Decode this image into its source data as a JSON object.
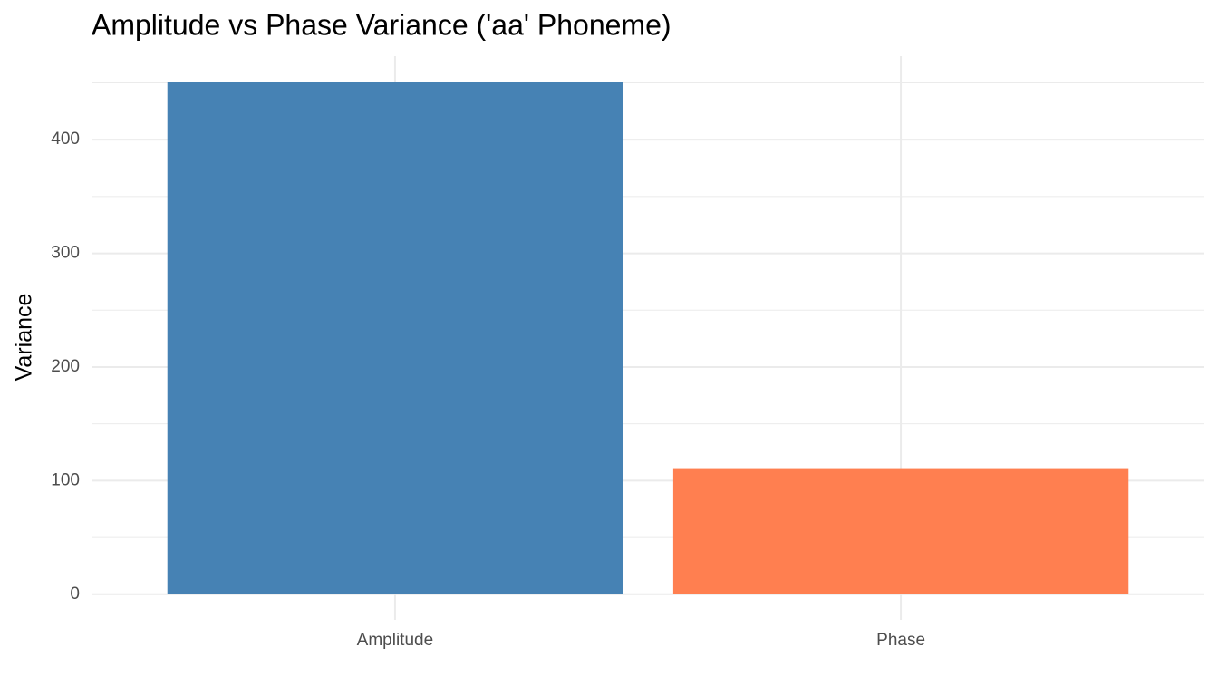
{
  "chart_data": {
    "type": "bar",
    "title": "Amplitude vs Phase Variance ('aa' Phoneme)",
    "y_label": "Variance",
    "categories": [
      "Amplitude",
      "Phase"
    ],
    "values": [
      451,
      111
    ],
    "colors": [
      "#4682b4",
      "#ff7f50"
    ],
    "ylim": [
      -22.5,
      473.5
    ],
    "yticks": [
      0,
      100,
      200,
      300,
      400
    ],
    "minor_yticks": [
      50,
      150,
      250,
      350,
      450
    ],
    "grid": true
  }
}
